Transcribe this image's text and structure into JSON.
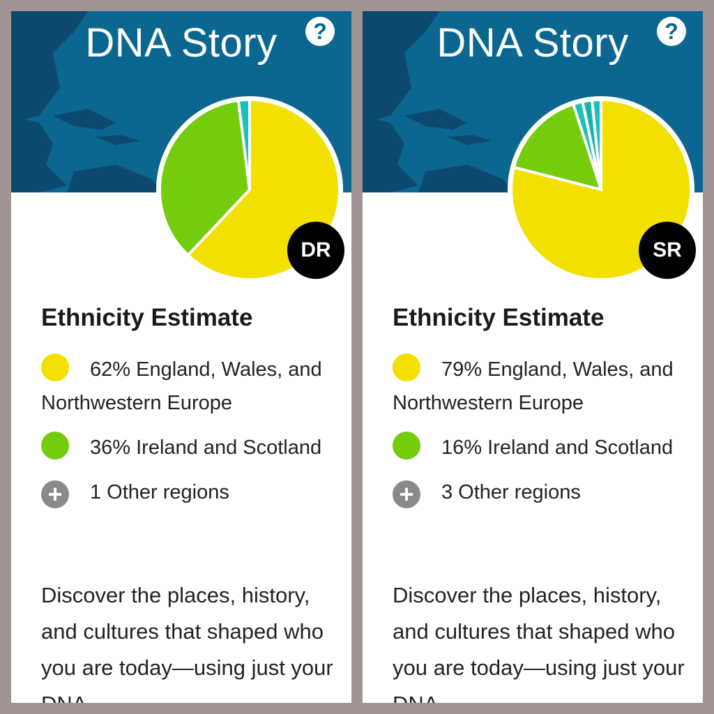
{
  "cards": [
    {
      "title": "DNA Story",
      "help_label": "?",
      "avatar_initials": "DR",
      "section_title": "Ethnicity Estimate",
      "regions": [
        {
          "percent_label": "62%",
          "name": "England, Wales, and Northwestern Europe",
          "color": "#f1e000",
          "value": 62
        },
        {
          "percent_label": "36%",
          "name": "Ireland and Scotland",
          "color": "#74cc0c",
          "value": 36
        }
      ],
      "other_regions_label": "1 Other regions",
      "description": "Discover the places, history, and cultures that shaped who you are today—using just your DNA."
    },
    {
      "title": "DNA Story",
      "help_label": "?",
      "avatar_initials": "SR",
      "section_title": "Ethnicity Estimate",
      "regions": [
        {
          "percent_label": "79%",
          "name": "England, Wales, and Northwestern Europe",
          "color": "#f1e000",
          "value": 79
        },
        {
          "percent_label": "16%",
          "name": "Ireland and Scotland",
          "color": "#74cc0c",
          "value": 16
        }
      ],
      "other_regions_label": "3 Other regions",
      "description": "Discover the places, history, and cultures that shaped who you are today—using just your DNA."
    }
  ],
  "colors": {
    "banner": "#0b6790",
    "map_land": "#0b4a6e",
    "other_region_teal": "#19c2b8",
    "plus_icon": "#8a8a8a"
  },
  "chart_data": [
    {
      "type": "pie",
      "slices": [
        {
          "label": "England, Wales, and Northwestern Europe",
          "value": 62,
          "color": "#f1e000"
        },
        {
          "label": "Ireland and Scotland",
          "value": 36,
          "color": "#74cc0c"
        },
        {
          "label": "Other",
          "value": 2,
          "color": "#19c2b8"
        }
      ]
    },
    {
      "type": "pie",
      "slices": [
        {
          "label": "England, Wales, and Northwestern Europe",
          "value": 79,
          "color": "#f1e000"
        },
        {
          "label": "Ireland and Scotland",
          "value": 16,
          "color": "#74cc0c"
        },
        {
          "label": "Other",
          "value": 1.7,
          "color": "#19c2b8"
        },
        {
          "label": "Other",
          "value": 1.7,
          "color": "#17b4ad"
        },
        {
          "label": "Other",
          "value": 1.6,
          "color": "#19c2b8"
        }
      ]
    }
  ]
}
